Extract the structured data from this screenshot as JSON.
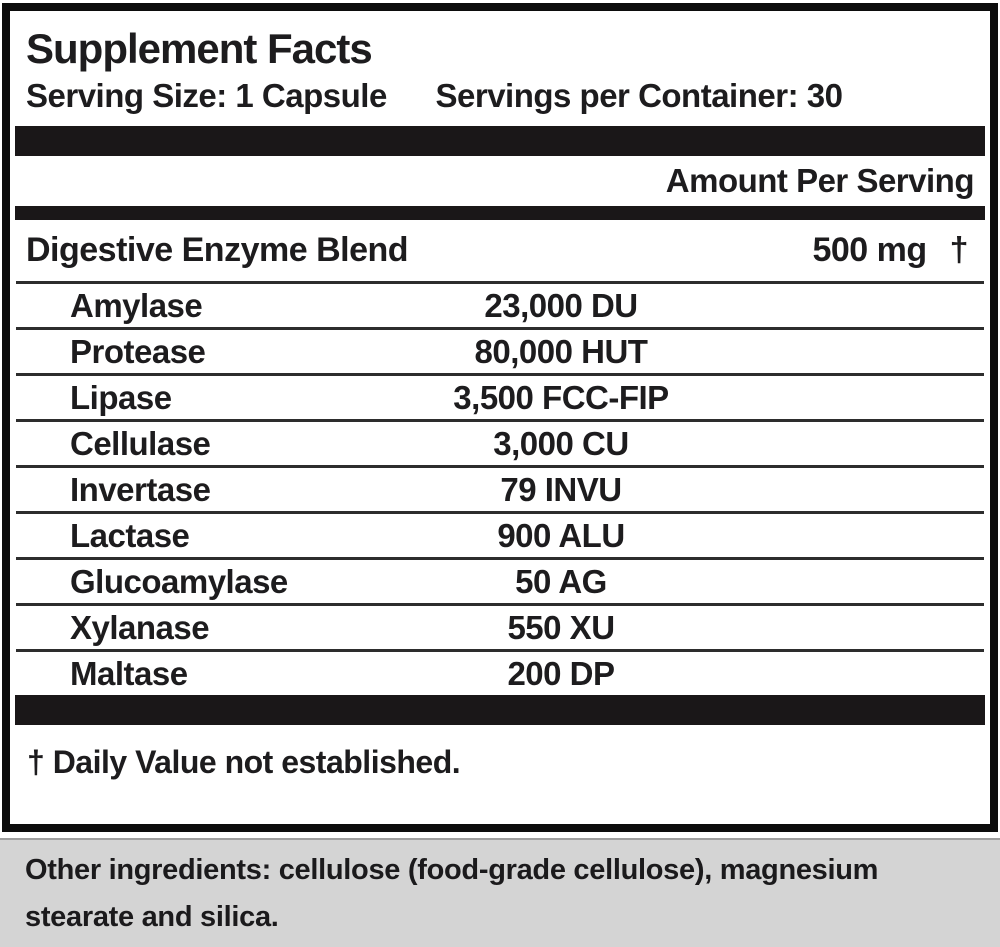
{
  "panel": {
    "title": "Supplement Facts",
    "serving_size": "Serving Size: 1 Capsule",
    "servings_per_container": "Servings per Container: 30",
    "amount_per_serving_header": "Amount Per Serving",
    "blend": {
      "name": "Digestive Enzyme Blend",
      "amount": "500 mg",
      "daily_value_symbol": "†"
    },
    "ingredients": [
      {
        "name": "Amylase",
        "amount": "23,000 DU"
      },
      {
        "name": "Protease",
        "amount": "80,000 HUT"
      },
      {
        "name": "Lipase",
        "amount": "3,500 FCC-FIP"
      },
      {
        "name": "Cellulase",
        "amount": "3,000 CU"
      },
      {
        "name": "Invertase",
        "amount": "79 INVU"
      },
      {
        "name": "Lactase",
        "amount": "900 ALU"
      },
      {
        "name": "Glucoamylase",
        "amount": "50 AG"
      },
      {
        "name": "Xylanase",
        "amount": "550 XU"
      },
      {
        "name": "Maltase",
        "amount": "200 DP"
      }
    ],
    "footnote": "† Daily Value not established.",
    "other_ingredients": "Other ingredients: cellulose (food-grade cellulose), magnesium stearate and silica."
  },
  "colors": {
    "divider_bar": "#1a1718",
    "thin_rule": "#2d2d2d",
    "text": "#1d1c1e",
    "footer_background": "#d4d4d4",
    "panel_border": "#0c0c0c"
  }
}
